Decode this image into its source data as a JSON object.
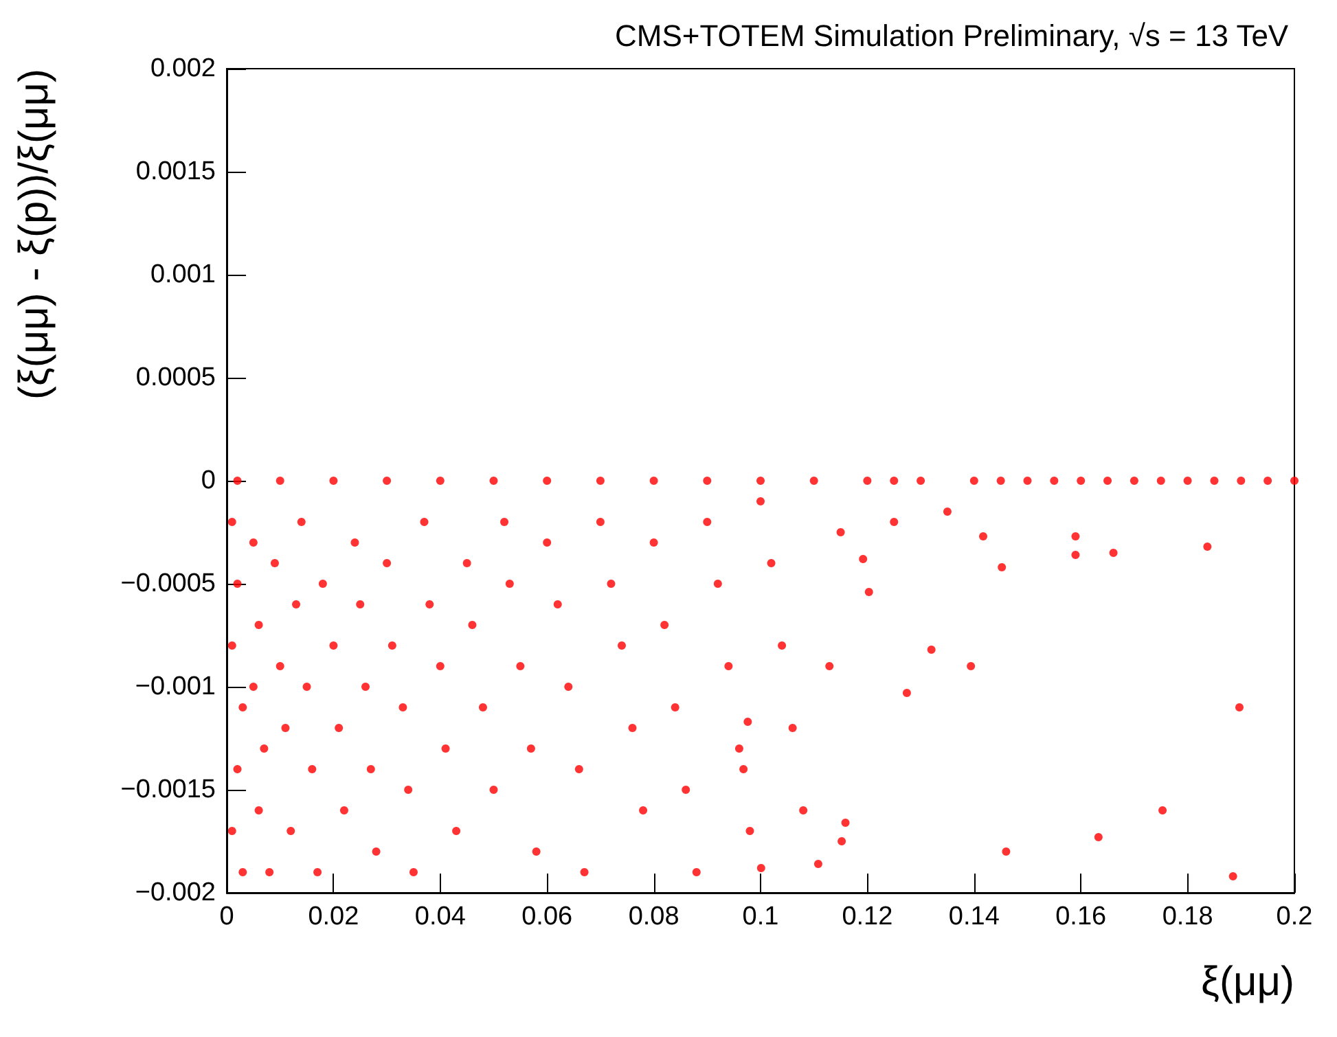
{
  "chart_data": {
    "type": "scatter",
    "title": "CMS+TOTEM Simulation Preliminary, √s = 13 TeV",
    "xlabel": "ξ(μμ)",
    "ylabel": "(ξ(μμ) - ξ(p))/ξ(μμ)",
    "xlim": [
      0,
      0.2
    ],
    "xticks": [
      0,
      0.02,
      0.04,
      0.06,
      0.08,
      0.1,
      0.12,
      0.14,
      0.16,
      0.18,
      0.2
    ],
    "ylim": [
      -0.002,
      0.002
    ],
    "yticks": [
      {
        "value": -0.002,
        "label": "−0.002"
      },
      {
        "value": -0.0015,
        "label": "−0.0015"
      },
      {
        "value": -0.001,
        "label": "−0.001"
      },
      {
        "value": -0.0005,
        "label": "−0.0005"
      },
      0,
      0.0005,
      0.001,
      0.0015,
      0.002
    ],
    "grid": false,
    "marker": "circle",
    "series": [
      {
        "color": "#ff0000",
        "x": [
          0.002,
          0.01,
          0.02,
          0.03,
          0.04,
          0.05,
          0.06,
          0.07,
          0.08,
          0.09,
          0.1,
          0.11,
          0.12,
          0.125,
          0.13,
          0.14,
          0.145,
          0.15,
          0.155,
          0.16,
          0.165,
          0.17,
          0.175,
          0.18,
          0.185,
          0.19,
          0.195,
          0.2,
          0.001,
          0.002,
          0.001,
          0.003,
          0.002,
          0.001,
          0.003,
          0.005,
          0.006,
          0.005,
          0.007,
          0.006,
          0.008,
          0.009,
          0.01,
          0.011,
          0.012,
          0.013,
          0.014,
          0.015,
          0.016,
          0.017,
          0.018,
          0.02,
          0.021,
          0.022,
          0.024,
          0.025,
          0.026,
          0.027,
          0.028,
          0.03,
          0.031,
          0.033,
          0.034,
          0.035,
          0.037,
          0.038,
          0.04,
          0.041,
          0.043,
          0.045,
          0.046,
          0.048,
          0.05,
          0.052,
          0.053,
          0.055,
          0.057,
          0.058,
          0.06,
          0.062,
          0.064,
          0.066,
          0.067,
          0.07,
          0.072,
          0.074,
          0.076,
          0.078,
          0.08,
          0.082,
          0.084,
          0.086,
          0.088,
          0.09,
          0.092,
          0.094,
          0.096,
          0.098,
          0.1,
          0.102,
          0.104,
          0.106,
          0.108,
          0.1129,
          0.1394,
          0.132,
          0.1274,
          0.1203,
          0.1192,
          0.1417,
          0.1452,
          0.159,
          0.1661,
          0.159,
          0.1837,
          0.1633,
          0.1753,
          0.1885,
          0.146,
          0.1152,
          0.1159,
          0.1001,
          0.1108,
          0.0968,
          0.0976,
          0.1897,
          0.115,
          0.125,
          0.135
        ],
        "values": [
          0,
          0,
          0,
          0,
          0,
          0,
          0,
          0,
          0,
          0,
          0,
          0,
          0,
          0,
          0,
          0,
          0,
          0,
          0,
          0,
          0,
          0,
          0,
          0,
          0,
          0,
          0,
          0,
          -0.0002,
          -0.0005,
          -0.0008,
          -0.0011,
          -0.0014,
          -0.0017,
          -0.0019,
          -0.0003,
          -0.0007,
          -0.001,
          -0.0013,
          -0.0016,
          -0.0019,
          -0.0004,
          -0.0009,
          -0.0012,
          -0.0017,
          -0.0006,
          -0.0002,
          -0.001,
          -0.0014,
          -0.0019,
          -0.0005,
          -0.0008,
          -0.0012,
          -0.0016,
          -0.0003,
          -0.0006,
          -0.001,
          -0.0014,
          -0.0018,
          -0.0004,
          -0.0008,
          -0.0011,
          -0.0015,
          -0.0019,
          -0.0002,
          -0.0006,
          -0.0009,
          -0.0013,
          -0.0017,
          -0.0004,
          -0.0007,
          -0.0011,
          -0.0015,
          -0.0002,
          -0.0005,
          -0.0009,
          -0.0013,
          -0.0018,
          -0.0003,
          -0.0006,
          -0.001,
          -0.0014,
          -0.0019,
          -0.0002,
          -0.0005,
          -0.0008,
          -0.0012,
          -0.0016,
          -0.0003,
          -0.0007,
          -0.0011,
          -0.0015,
          -0.0019,
          -0.0002,
          -0.0005,
          -0.0009,
          -0.0013,
          -0.0017,
          -0.0001,
          -0.0004,
          -0.0008,
          -0.0012,
          -0.0016,
          -0.0009,
          -0.0009,
          -0.00082,
          -0.00103,
          -0.00054,
          -0.00038,
          -0.00027,
          -0.00042,
          -0.00036,
          -0.00035,
          -0.00027,
          -0.00032,
          -0.00173,
          -0.0016,
          -0.00192,
          -0.0018,
          -0.00175,
          -0.00166,
          -0.00188,
          -0.00186,
          -0.0014,
          -0.00117,
          -0.0011,
          -0.00025,
          -0.0002,
          -0.00015
        ]
      }
    ]
  }
}
